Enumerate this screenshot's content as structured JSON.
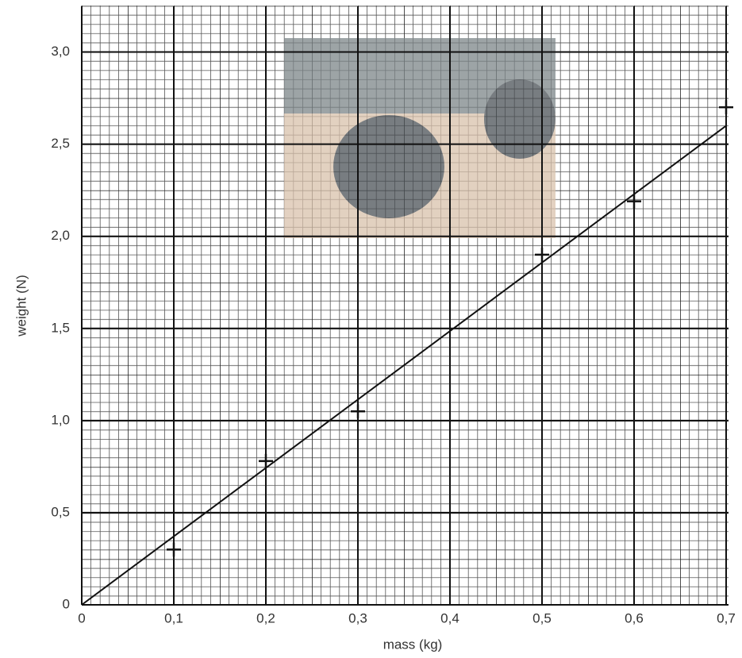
{
  "chart_data": {
    "type": "scatter",
    "x_label": "mass (kg)",
    "y_label": "weight (N)",
    "x": [
      0.1,
      0.2,
      0.3,
      0.5,
      0.6,
      0.7
    ],
    "values": [
      0.3,
      0.78,
      1.05,
      1.9,
      2.19,
      2.7
    ],
    "color": "#111111",
    "fit": {
      "x": [
        0,
        0.7
      ],
      "values": [
        0,
        2.6
      ]
    },
    "xlim": [
      0,
      0.7
    ],
    "ylim": [
      0,
      3.25
    ],
    "xticks": [
      0,
      {
        "value": 0.1,
        "label": "0,1"
      },
      {
        "value": 0.2,
        "label": "0,2"
      },
      {
        "value": 0.3,
        "label": "0,3"
      },
      {
        "value": 0.4,
        "label": "0,4"
      },
      {
        "value": 0.5,
        "label": "0,5"
      },
      {
        "value": 0.6,
        "label": "0,6"
      },
      {
        "value": 0.7,
        "label": "0,7"
      }
    ],
    "yticks": [
      0,
      {
        "value": 0.5,
        "label": "0,5"
      },
      {
        "value": 1.0,
        "label": "1,0"
      },
      {
        "value": 1.5,
        "label": "1,5"
      },
      {
        "value": 2.0,
        "label": "2,0"
      },
      {
        "value": 2.5,
        "label": "2,5"
      },
      {
        "value": 3.0,
        "label": "3,0"
      }
    ],
    "grid": true
  }
}
